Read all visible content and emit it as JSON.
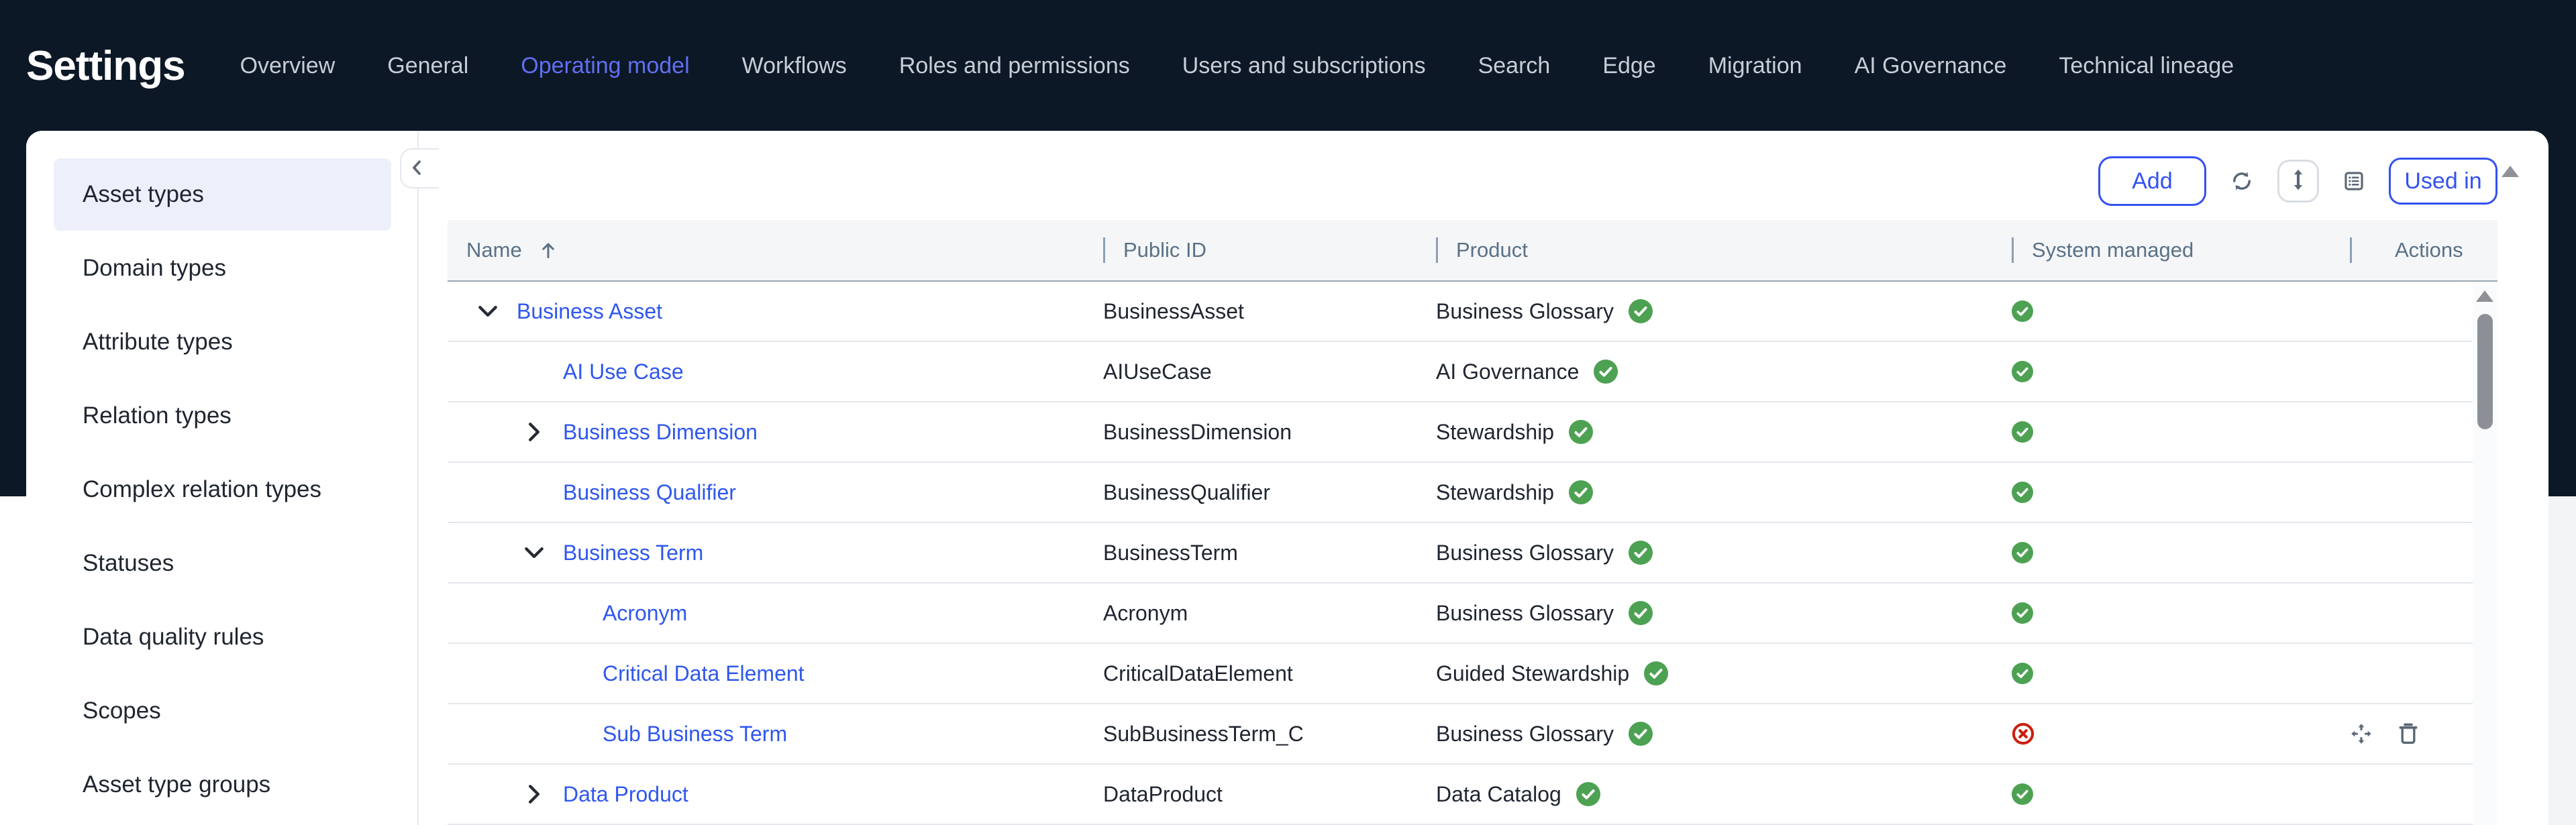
{
  "header": {
    "title": "Settings",
    "tabs": [
      {
        "label": "Overview",
        "active": false
      },
      {
        "label": "General",
        "active": false
      },
      {
        "label": "Operating model",
        "active": true
      },
      {
        "label": "Workflows",
        "active": false
      },
      {
        "label": "Roles and permissions",
        "active": false
      },
      {
        "label": "Users and subscriptions",
        "active": false
      },
      {
        "label": "Search",
        "active": false
      },
      {
        "label": "Edge",
        "active": false
      },
      {
        "label": "Migration",
        "active": false
      },
      {
        "label": "AI Governance",
        "active": false
      },
      {
        "label": "Technical lineage",
        "active": false
      }
    ]
  },
  "sidebar": {
    "items": [
      {
        "label": "Asset types",
        "selected": true
      },
      {
        "label": "Domain types",
        "selected": false
      },
      {
        "label": "Attribute types",
        "selected": false
      },
      {
        "label": "Relation types",
        "selected": false
      },
      {
        "label": "Complex relation types",
        "selected": false
      },
      {
        "label": "Statuses",
        "selected": false
      },
      {
        "label": "Data quality rules",
        "selected": false
      },
      {
        "label": "Scopes",
        "selected": false
      },
      {
        "label": "Asset type groups",
        "selected": false
      }
    ],
    "collapse_icon": "chevron-left"
  },
  "toolbar": {
    "add_label": "Add",
    "used_in_label": "Used in",
    "icons": [
      "refresh-icon",
      "arrows-vertical-icon",
      "list-view-icon"
    ]
  },
  "table": {
    "columns": [
      "Name",
      "Public ID",
      "Product",
      "System managed",
      "Actions"
    ],
    "sort": {
      "column": "Name",
      "direction": "asc"
    },
    "rows": [
      {
        "name": "Business Asset",
        "level": 0,
        "expand": "expanded",
        "public_id": "BusinessAsset",
        "product": "Business Glossary",
        "product_check": true,
        "system_managed": "check",
        "actions": false
      },
      {
        "name": "AI Use Case",
        "level": 1,
        "expand": "none",
        "public_id": "AIUseCase",
        "product": "AI Governance",
        "product_check": true,
        "system_managed": "check",
        "actions": false
      },
      {
        "name": "Business Dimension",
        "level": 1,
        "expand": "collapsed",
        "public_id": "BusinessDimension",
        "product": "Stewardship",
        "product_check": true,
        "system_managed": "check",
        "actions": false
      },
      {
        "name": "Business Qualifier",
        "level": 1,
        "expand": "none",
        "public_id": "BusinessQualifier",
        "product": "Stewardship",
        "product_check": true,
        "system_managed": "check",
        "actions": false
      },
      {
        "name": "Business Term",
        "level": 1,
        "expand": "expanded",
        "public_id": "BusinessTerm",
        "product": "Business Glossary",
        "product_check": true,
        "system_managed": "check",
        "actions": false
      },
      {
        "name": "Acronym",
        "level": 2,
        "expand": "none",
        "public_id": "Acronym",
        "product": "Business Glossary",
        "product_check": true,
        "system_managed": "check",
        "actions": false
      },
      {
        "name": "Critical Data Element",
        "level": 2,
        "expand": "none",
        "public_id": "CriticalDataElement",
        "product": "Guided Stewardship",
        "product_check": true,
        "system_managed": "check",
        "actions": false
      },
      {
        "name": "Sub Business Term",
        "level": 2,
        "expand": "none",
        "public_id": "SubBusinessTerm_C",
        "product": "Business Glossary",
        "product_check": true,
        "system_managed": "cross",
        "actions": true
      },
      {
        "name": "Data Product",
        "level": 1,
        "expand": "collapsed",
        "public_id": "DataProduct",
        "product": "Data Catalog",
        "product_check": true,
        "system_managed": "check",
        "actions": false
      }
    ]
  },
  "colors": {
    "navy": "#0d1826",
    "accent_blue": "#3351f1",
    "active_tab_blue": "#5f6ff2",
    "link_blue": "#2f57ee",
    "check_green": "#4da152",
    "cross_red": "#cc1f0e"
  }
}
